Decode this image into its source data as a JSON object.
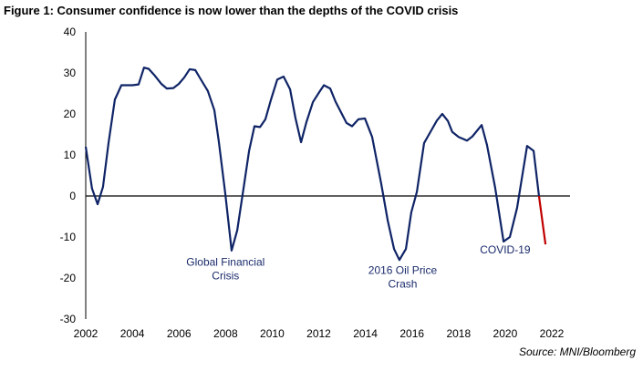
{
  "chart_data": {
    "type": "line",
    "title": "Figure 1: Consumer confidence is now lower than the depths of the COVID crisis",
    "source": "Source: MNI/Bloomberg",
    "xlabel": "",
    "ylabel": "",
    "xlim": [
      2002,
      2022
    ],
    "ylim": [
      -30,
      40
    ],
    "x_ticks": [
      "2002",
      "2004",
      "2006",
      "2008",
      "2010",
      "2012",
      "2014",
      "2016",
      "2018",
      "2020",
      "2022"
    ],
    "y_ticks": [
      "40",
      "30",
      "20",
      "10",
      "0",
      "-10",
      "-20",
      "-30"
    ],
    "grid": false,
    "colors": {
      "line": "#0f2466",
      "latest": "#c00000",
      "zero_line": "#000000"
    },
    "annotations": [
      {
        "lines": [
          "Global Financial",
          "Crisis"
        ],
        "x": 2008.0,
        "y": -17
      },
      {
        "lines": [
          "2016 Oil Price",
          "Crash"
        ],
        "x": 2015.6,
        "y": -19
      },
      {
        "lines": [
          "COVID-19"
        ],
        "x": 2020.0,
        "y": -14
      }
    ],
    "series": [
      {
        "points": [
          [
            2002.0,
            12
          ],
          [
            2002.27,
            1.8
          ],
          [
            2002.51,
            -2
          ],
          [
            2002.74,
            2.2
          ],
          [
            2002.98,
            13
          ],
          [
            2003.25,
            23.5
          ],
          [
            2003.53,
            27
          ],
          [
            2004.0,
            27
          ],
          [
            2004.27,
            27.2
          ],
          [
            2004.5,
            31.3
          ],
          [
            2004.7,
            31
          ],
          [
            2004.97,
            29.3
          ],
          [
            2005.25,
            27.3
          ],
          [
            2005.48,
            26.2
          ],
          [
            2005.76,
            26.3
          ],
          [
            2005.99,
            27.3
          ],
          [
            2006.23,
            28.9
          ],
          [
            2006.46,
            30.9
          ],
          [
            2006.7,
            30.7
          ],
          [
            2006.93,
            28.5
          ],
          [
            2007.24,
            25.6
          ],
          [
            2007.52,
            20.9
          ],
          [
            2007.71,
            13.3
          ],
          [
            2007.99,
            0.5
          ],
          [
            2008.26,
            -13.3
          ],
          [
            2008.5,
            -8.4
          ],
          [
            2008.77,
            1.8
          ],
          [
            2009.01,
            11
          ],
          [
            2009.24,
            17
          ],
          [
            2009.48,
            16.8
          ],
          [
            2009.71,
            18.7
          ],
          [
            2009.95,
            23.5
          ],
          [
            2010.22,
            28.4
          ],
          [
            2010.49,
            29.1
          ],
          [
            2010.77,
            26
          ],
          [
            2011.0,
            19
          ],
          [
            2011.24,
            13.1
          ],
          [
            2011.47,
            18
          ],
          [
            2011.75,
            22.9
          ],
          [
            2012.02,
            25.3
          ],
          [
            2012.22,
            27
          ],
          [
            2012.49,
            26.2
          ],
          [
            2012.72,
            23
          ],
          [
            2013.19,
            17.8
          ],
          [
            2013.43,
            17
          ],
          [
            2013.7,
            18.7
          ],
          [
            2013.98,
            18.9
          ],
          [
            2014.29,
            14.4
          ],
          [
            2014.68,
            3
          ],
          [
            2014.96,
            -6
          ],
          [
            2015.23,
            -12.9
          ],
          [
            2015.46,
            -15.6
          ],
          [
            2015.74,
            -12.9
          ],
          [
            2015.97,
            -4
          ],
          [
            2016.21,
            1
          ],
          [
            2016.52,
            12.9
          ],
          [
            2016.83,
            16
          ],
          [
            2017.07,
            18.4
          ],
          [
            2017.3,
            20
          ],
          [
            2017.54,
            18.3
          ],
          [
            2017.73,
            15.6
          ],
          [
            2018.0,
            14.4
          ],
          [
            2018.36,
            13.5
          ],
          [
            2018.59,
            14.5
          ],
          [
            2018.99,
            17.3
          ],
          [
            2019.22,
            12.4
          ],
          [
            2019.57,
            2
          ],
          [
            2019.93,
            -11.1
          ],
          [
            2020.2,
            -10
          ],
          [
            2020.51,
            -2.9
          ],
          [
            2020.94,
            12.2
          ],
          [
            2021.22,
            11
          ],
          [
            2021.45,
            0
          ]
        ]
      },
      {
        "points": [
          [
            2021.45,
            0
          ],
          [
            2021.73,
            -11.8
          ]
        ]
      }
    ]
  }
}
